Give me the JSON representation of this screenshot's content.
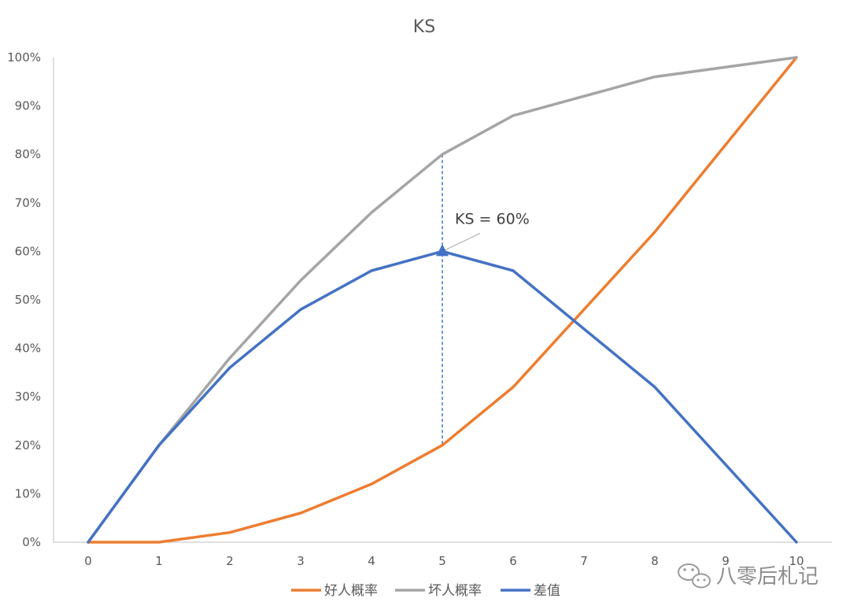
{
  "chart_data": {
    "type": "line",
    "title": "KS",
    "categories": [
      "0",
      "1",
      "2",
      "3",
      "4",
      "5",
      "6",
      "7",
      "8",
      "9",
      "10"
    ],
    "x": [
      0,
      1,
      2,
      3,
      4,
      5,
      6,
      8,
      10
    ],
    "ylim": [
      0,
      100
    ],
    "ytick_labels": [
      "0%",
      "10%",
      "20%",
      "30%",
      "40%",
      "50%",
      "60%",
      "70%",
      "80%",
      "90%",
      "100%"
    ],
    "series": [
      {
        "name": "好人概率",
        "color": "#ed7d31",
        "values": [
          0,
          0,
          2,
          6,
          12,
          20,
          32,
          64,
          100
        ]
      },
      {
        "name": "坏人概率",
        "color": "#a5a5a5",
        "values": [
          0,
          20,
          38,
          54,
          68,
          80,
          88,
          96,
          100
        ]
      },
      {
        "name": "差值",
        "color": "#4472c4",
        "values": [
          0,
          20,
          36,
          48,
          56,
          60,
          56,
          32,
          0
        ]
      }
    ],
    "annotation": {
      "text": "KS = 60%",
      "x": 5,
      "y": 60,
      "y_low": 20,
      "y_high": 80
    },
    "grid": false,
    "legend_position": "bottom"
  },
  "watermark": {
    "text": "八零后札记",
    "icon": "wechat-icon"
  }
}
